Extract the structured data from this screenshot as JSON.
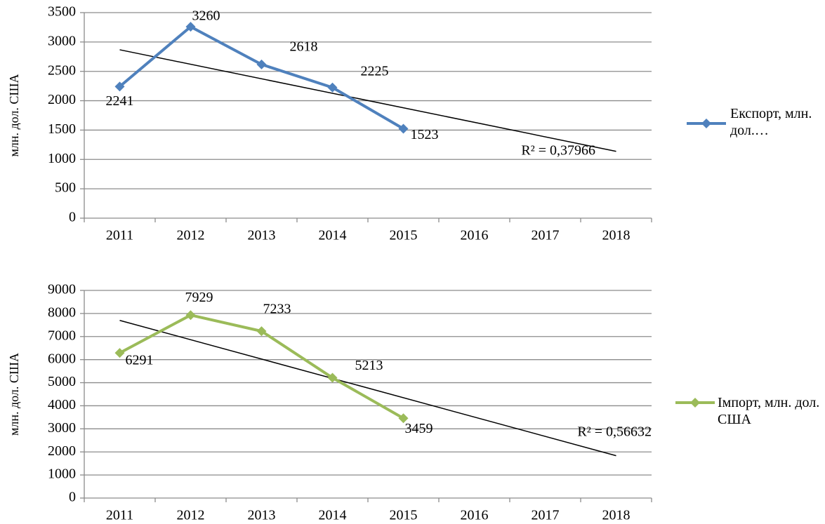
{
  "chart_data": [
    {
      "type": "line",
      "y_label": "млн. дол. США",
      "categories": [
        "2011",
        "2012",
        "2013",
        "2014",
        "2015",
        "2016",
        "2017",
        "2018"
      ],
      "series": [
        {
          "name": "Експорт, млн. дол.…",
          "color": "#4f81bd",
          "values": [
            2241,
            3260,
            2618,
            2225,
            1523,
            null,
            null,
            null
          ]
        }
      ],
      "trendline": {
        "type": "linear",
        "label": "R² = 0,37966"
      },
      "ylim": [
        0,
        3500
      ],
      "yticks": [
        0,
        500,
        1000,
        1500,
        2000,
        2500,
        3000,
        3500
      ],
      "grid": true,
      "legend": "right"
    },
    {
      "type": "line",
      "y_label": "млн. дол. США",
      "categories": [
        "2011",
        "2012",
        "2013",
        "2014",
        "2015",
        "2016",
        "2017",
        "2018"
      ],
      "series": [
        {
          "name": "Імпорт, млн. дол. США",
          "color": "#9bbb59",
          "values": [
            6291,
            7929,
            7233,
            5213,
            3459,
            null,
            null,
            null
          ]
        }
      ],
      "trendline": {
        "type": "linear",
        "label": "R² = 0,56632"
      },
      "ylim": [
        0,
        9000
      ],
      "yticks": [
        0,
        1000,
        2000,
        3000,
        4000,
        5000,
        6000,
        7000,
        8000,
        9000
      ],
      "grid": true,
      "legend": "right"
    }
  ]
}
